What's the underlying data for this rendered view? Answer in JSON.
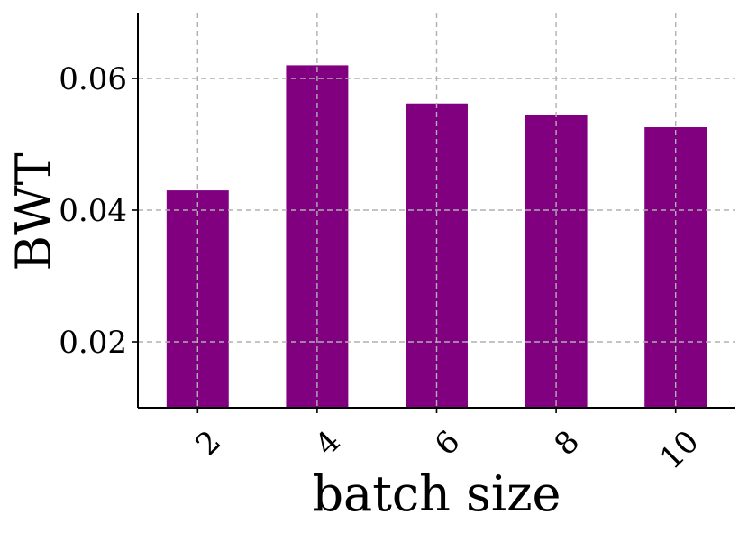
{
  "chart_data": {
    "type": "bar",
    "categories": [
      "2",
      "4",
      "6",
      "8",
      "10"
    ],
    "values": [
      0.043,
      0.062,
      0.0562,
      0.0545,
      0.0526
    ],
    "xlabel": "batch size",
    "ylabel": "BWT",
    "ylim": [
      0.01,
      0.07
    ],
    "yticks": [
      0.02,
      0.04,
      0.06
    ],
    "ytick_labels": [
      "0.02",
      "0.04",
      "0.06"
    ],
    "grid": true,
    "bar_color": "#800080"
  }
}
